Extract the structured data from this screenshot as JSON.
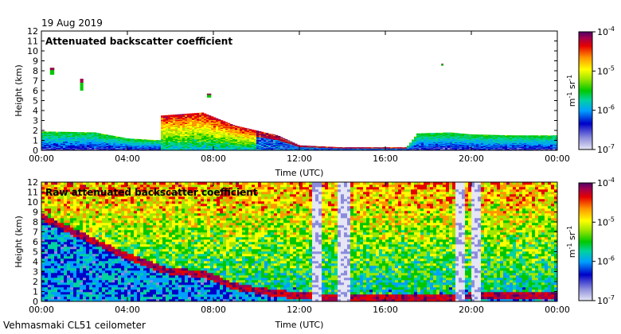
{
  "header": {
    "date": "19 Aug 2019"
  },
  "footer": {
    "instrument": "Vehmasmaki CL51 ceilometer"
  },
  "colors": {
    "colormap": [
      "#e6e6f5",
      "#8c8cdc",
      "#0000c8",
      "#00a0ff",
      "#00d2a0",
      "#00c800",
      "#a0e600",
      "#ffff00",
      "#ff9600",
      "#e60000",
      "#a00050",
      "#500064"
    ]
  },
  "chart_data": [
    {
      "type": "heatmap",
      "title": "Attenuated backscatter coefficient",
      "xlabel": "Time (UTC)",
      "ylabel": "Height (km)",
      "x_ticks": [
        "00:00",
        "04:00",
        "08:00",
        "12:00",
        "16:00",
        "20:00",
        "00:00"
      ],
      "xlim_hours": [
        0,
        24
      ],
      "ylim": [
        0,
        12
      ],
      "y_ticks": [
        "0",
        "1",
        "2",
        "3",
        "4",
        "5",
        "6",
        "7",
        "8",
        "9",
        "10",
        "11",
        "12"
      ],
      "colorbar": {
        "label": "m-1 sr-1",
        "scale": "log",
        "range": [
          1e-07,
          0.0001
        ],
        "ticks": [
          "10",
          "10",
          "10",
          "10"
        ],
        "tick_exponents": [
          "-7",
          "-6",
          "-5",
          "-4"
        ]
      },
      "features": {
        "boundary_layer_top_km": [
          [
            0,
            1.9
          ],
          [
            2.5,
            1.8
          ],
          [
            4,
            1.2
          ],
          [
            5.6,
            1.0
          ],
          [
            5.6,
            3.5
          ],
          [
            7.5,
            3.8
          ],
          [
            9,
            2.5
          ],
          [
            11,
            1.5
          ],
          [
            12,
            0.5
          ],
          [
            14,
            0.3
          ],
          [
            17,
            0.3
          ],
          [
            17.5,
            1.7
          ],
          [
            19,
            1.8
          ],
          [
            20,
            1.6
          ],
          [
            22,
            1.5
          ],
          [
            24,
            1.5
          ]
        ],
        "elevated_layers": [
          {
            "t": [
              0.4,
              0.6
            ],
            "h": [
              7.6,
              8.3
            ]
          },
          {
            "t": [
              1.8,
              1.95
            ],
            "h": [
              6.0,
              7.2
            ]
          },
          {
            "t": [
              7.7,
              7.9
            ],
            "h": [
              5.3,
              5.7
            ]
          },
          {
            "t": [
              18.6,
              18.7
            ],
            "h": [
              8.5,
              8.7
            ]
          }
        ]
      }
    },
    {
      "type": "heatmap",
      "title": "Raw attenuated backscatter coefficient",
      "xlabel": "Time (UTC)",
      "ylabel": "Height (km)",
      "x_ticks": [
        "00:00",
        "04:00",
        "08:00",
        "12:00",
        "16:00",
        "20:00",
        "00:00"
      ],
      "xlim_hours": [
        0,
        24
      ],
      "ylim": [
        0,
        12
      ],
      "y_ticks": [
        "0",
        "1",
        "2",
        "3",
        "4",
        "5",
        "6",
        "7",
        "8",
        "9",
        "10",
        "11",
        "12"
      ],
      "colorbar": {
        "label": "m-1 sr-1",
        "scale": "log",
        "range": [
          1e-07,
          0.0001
        ],
        "ticks": [
          "10",
          "10",
          "10",
          "10"
        ],
        "tick_exponents": [
          "-7",
          "-6",
          "-5",
          "-4"
        ]
      },
      "features": {
        "descending_layer_km": [
          [
            0,
            8.5
          ],
          [
            2,
            6.5
          ],
          [
            4,
            4.5
          ],
          [
            6,
            3.0
          ],
          [
            7.5,
            2.8
          ],
          [
            9,
            1.5
          ],
          [
            11,
            0.8
          ],
          [
            13,
            0.4
          ],
          [
            17,
            0.3
          ],
          [
            20,
            0.5
          ],
          [
            24,
            0.5
          ]
        ],
        "clear_columns_hours": [
          12.8,
          14.1,
          19.5,
          20.2
        ]
      }
    }
  ]
}
